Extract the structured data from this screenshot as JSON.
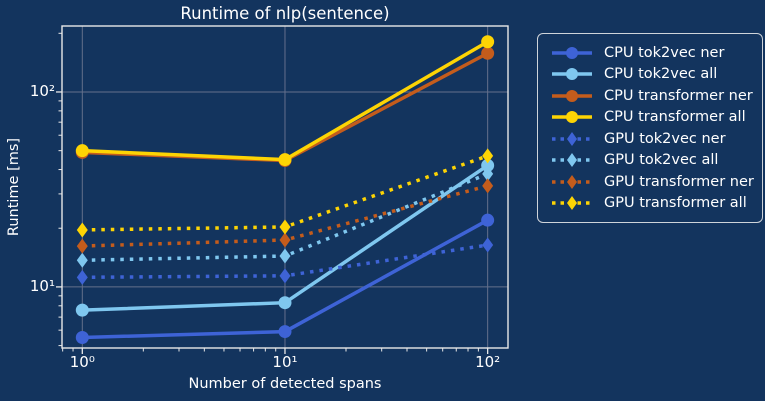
{
  "figure": {
    "background_color": "#13345e",
    "text_color": "#ffffff",
    "grid_color": "#64708c",
    "spine_color": "#e8e8e8",
    "legend_border_color": "#cfd4da"
  },
  "chart_data": {
    "type": "line",
    "title": "Runtime of nlp(sentence)",
    "xlabel": "Number of detected spans",
    "ylabel": "Runtime [ms]",
    "xscale": "log",
    "yscale": "log",
    "grid": true,
    "legend_position": "outside-right",
    "x": [
      1,
      10,
      100
    ],
    "xlim": [
      0.794,
      126
    ],
    "ylim": [
      4.86,
      218
    ],
    "xticks": {
      "values": [
        1,
        10,
        100
      ],
      "labels": [
        "10⁰",
        "10¹",
        "10²"
      ]
    },
    "yticks": {
      "values": [
        10,
        100
      ],
      "labels": [
        "10¹",
        "10²"
      ]
    },
    "x_minor_ticks": [
      0.8,
      0.9,
      2,
      3,
      4,
      5,
      6,
      7,
      8,
      9,
      20,
      30,
      40,
      50,
      60,
      70,
      80,
      90
    ],
    "y_minor_ticks": [
      5,
      6,
      7,
      8,
      9,
      20,
      30,
      40,
      50,
      60,
      70,
      80,
      90,
      200
    ],
    "series": [
      {
        "name": "CPU tok2vec ner",
        "device": "CPU",
        "style": "solid",
        "marker": "circle",
        "color": "#3e63d6",
        "values": [
          5.5,
          5.9,
          22
        ]
      },
      {
        "name": "CPU tok2vec all",
        "device": "CPU",
        "style": "solid",
        "marker": "circle",
        "color": "#7fc7ef",
        "values": [
          7.6,
          8.3,
          42
        ]
      },
      {
        "name": "CPU transformer ner",
        "device": "CPU",
        "style": "solid",
        "marker": "circle",
        "color": "#c45c1c",
        "values": [
          49,
          44.5,
          158
        ]
      },
      {
        "name": "CPU transformer all",
        "device": "CPU",
        "style": "solid",
        "marker": "circle",
        "color": "#fdd404",
        "values": [
          50,
          45,
          181
        ]
      },
      {
        "name": "GPU tok2vec ner",
        "device": "GPU",
        "style": "dotted",
        "marker": "diamond",
        "color": "#3e63d6",
        "values": [
          11.2,
          11.4,
          16.4
        ]
      },
      {
        "name": "GPU tok2vec all",
        "device": "GPU",
        "style": "dotted",
        "marker": "diamond",
        "color": "#7fc7ef",
        "values": [
          13.7,
          14.4,
          38
        ]
      },
      {
        "name": "GPU transformer ner",
        "device": "GPU",
        "style": "dotted",
        "marker": "diamond",
        "color": "#c45c1c",
        "values": [
          16.2,
          17.4,
          33
        ]
      },
      {
        "name": "GPU transformer all",
        "device": "GPU",
        "style": "dotted",
        "marker": "diamond",
        "color": "#fdd404",
        "values": [
          19.6,
          20.3,
          47
        ]
      }
    ]
  }
}
